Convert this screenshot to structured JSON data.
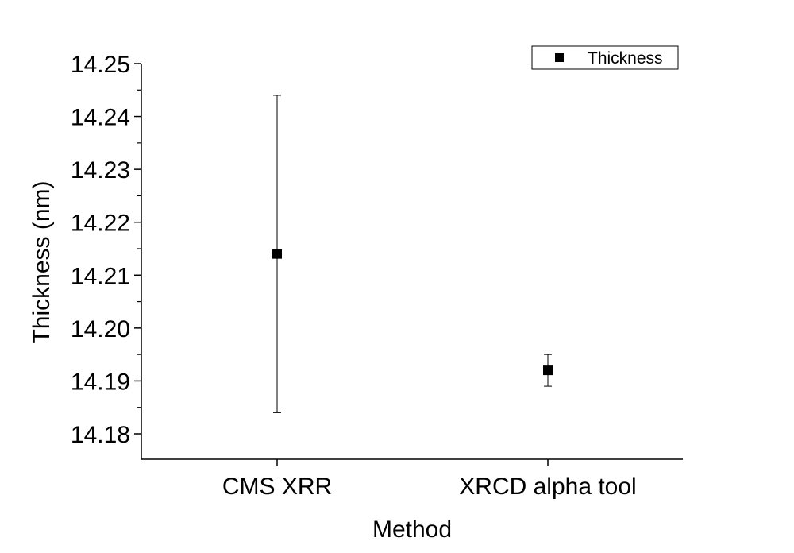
{
  "chart_data": {
    "type": "scatter",
    "xlabel": "Method",
    "ylabel": "Thickness (nm)",
    "categories": [
      "CMS XRR",
      "XRCD alpha tool"
    ],
    "series": [
      {
        "name": "Thickness",
        "values": [
          14.214,
          14.192
        ],
        "error": [
          0.03,
          0.003
        ]
      }
    ],
    "ylim": [
      14.175,
      14.25
    ],
    "yticks": [
      "14.18",
      "14.19",
      "14.20",
      "14.21",
      "14.22",
      "14.23",
      "14.24",
      "14.25"
    ],
    "grid": false,
    "legend": "top-right",
    "marker": "square",
    "color": "#000000"
  }
}
